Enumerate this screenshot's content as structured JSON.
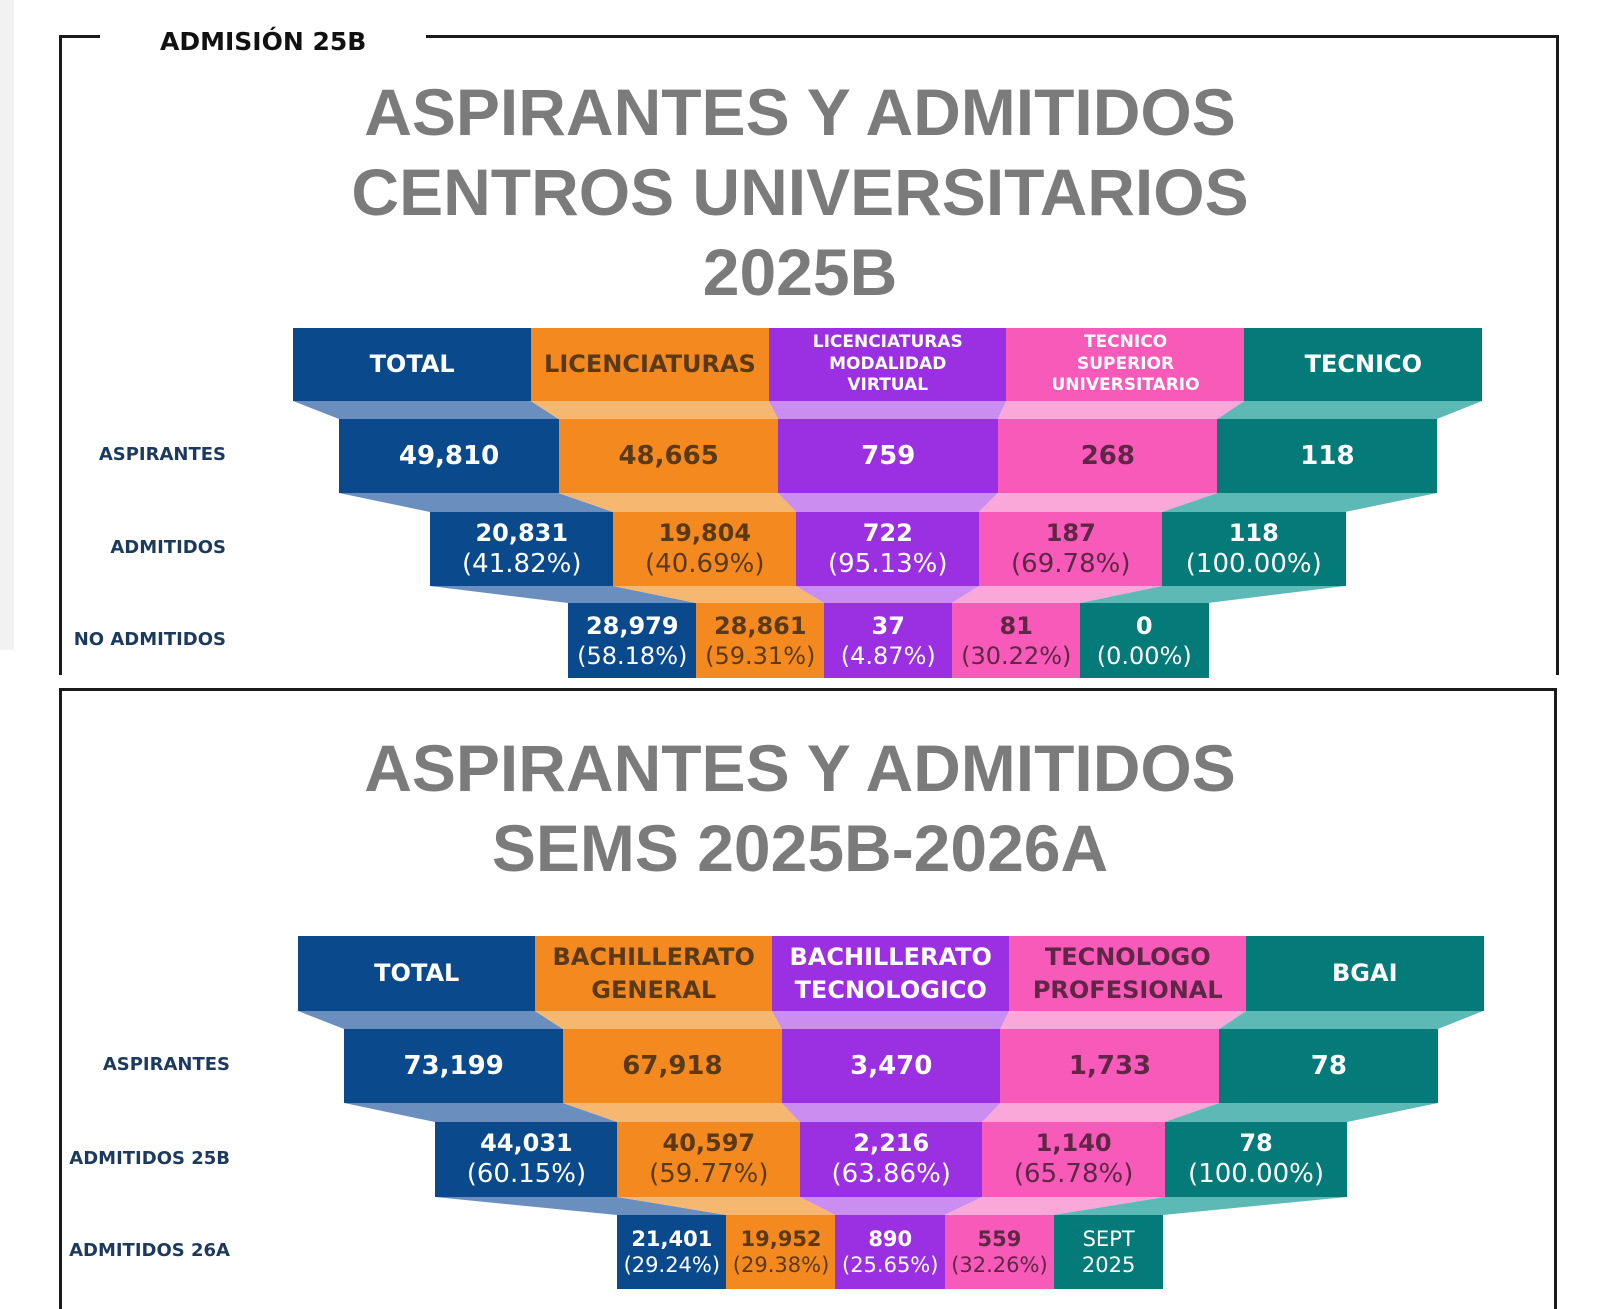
{
  "colors": {
    "total": "#0a4a8c",
    "licenciaturas": "#f48a1f",
    "virtual": "#9b30e3",
    "tecnico_superior": "#f75ab8",
    "tecnico": "#047b78"
  },
  "corner_label": "ADMISIÓN 25B",
  "chart_data": [
    {
      "type": "table",
      "title_lines": [
        "ASPIRANTES Y ADMITIDOS",
        "CENTROS UNIVERSITARIOS",
        "2025B"
      ],
      "columns": [
        {
          "label_lines": [
            "TOTAL"
          ]
        },
        {
          "label_lines": [
            "LICENCIATURAS"
          ]
        },
        {
          "label_lines": [
            "LICENCIATURAS",
            "MODALIDAD",
            "VIRTUAL"
          ]
        },
        {
          "label_lines": [
            "TECNICO",
            "SUPERIOR",
            "UNIVERSITARIO"
          ]
        },
        {
          "label_lines": [
            "TECNICO"
          ]
        }
      ],
      "rows": [
        {
          "label": "ASPIRANTES",
          "cells": [
            {
              "value": "49,810"
            },
            {
              "value": "48,665"
            },
            {
              "value": "759"
            },
            {
              "value": "268"
            },
            {
              "value": "118"
            }
          ]
        },
        {
          "label": "ADMITIDOS",
          "cells": [
            {
              "value": "20,831",
              "pct": "(41.82%)"
            },
            {
              "value": "19,804",
              "pct": "(40.69%)"
            },
            {
              "value": "722",
              "pct": "(95.13%)"
            },
            {
              "value": "187",
              "pct": "(69.78%)"
            },
            {
              "value": "118",
              "pct": "(100.00%)"
            }
          ]
        },
        {
          "label": "NO ADMITIDOS",
          "cells": [
            {
              "value": "28,979",
              "pct": "(58.18%)"
            },
            {
              "value": "28,861",
              "pct": "(59.31%)"
            },
            {
              "value": "37",
              "pct": "(4.87%)"
            },
            {
              "value": "81",
              "pct": "(30.22%)"
            },
            {
              "value": "0",
              "pct": "(0.00%)"
            }
          ]
        }
      ]
    },
    {
      "type": "table",
      "title_lines": [
        "ASPIRANTES Y ADMITIDOS",
        "SEMS 2025B-2026A"
      ],
      "columns": [
        {
          "label_lines": [
            "TOTAL"
          ]
        },
        {
          "label_lines": [
            "BACHILLERATO",
            "GENERAL"
          ]
        },
        {
          "label_lines": [
            "BACHILLERATO",
            "TECNOLOGICO"
          ]
        },
        {
          "label_lines": [
            "TECNOLOGO",
            "PROFESIONAL"
          ]
        },
        {
          "label_lines": [
            "BGAI"
          ]
        }
      ],
      "rows": [
        {
          "label": "ASPIRANTES",
          "cells": [
            {
              "value": "73,199"
            },
            {
              "value": "67,918"
            },
            {
              "value": "3,470"
            },
            {
              "value": "1,733"
            },
            {
              "value": "78"
            }
          ]
        },
        {
          "label": "ADMITIDOS 25B",
          "cells": [
            {
              "value": "44,031",
              "pct": "(60.15%)"
            },
            {
              "value": "40,597",
              "pct": "(59.77%)"
            },
            {
              "value": "2,216",
              "pct": "(63.86%)"
            },
            {
              "value": "1,140",
              "pct": "(65.78%)"
            },
            {
              "value": "78",
              "pct": "(100.00%)"
            }
          ]
        },
        {
          "label": "ADMITIDOS 26A",
          "cells": [
            {
              "value": "21,401",
              "pct": "(29.24%)"
            },
            {
              "value": "19,952",
              "pct": "(29.38%)"
            },
            {
              "value": "890",
              "pct": "(25.65%)"
            },
            {
              "value": "559",
              "pct": "(32.26%)"
            },
            {
              "value": "SEPT",
              "pct": "2025"
            }
          ]
        }
      ]
    }
  ]
}
